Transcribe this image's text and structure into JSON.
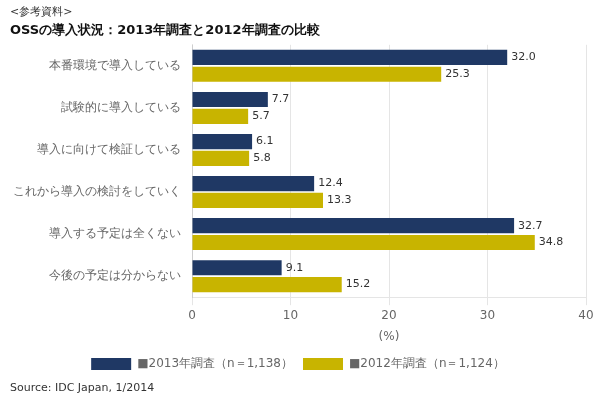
{
  "chart_data": {
    "type": "bar",
    "orientation": "horizontal",
    "subtitle": "<参考資料>",
    "title": "OSSの導入状況：2013年調査と2012年調査の比較",
    "categories": [
      "本番環境で導入している",
      "試験的に導入している",
      "導入に向けて検証している",
      "これから導入の検討をしていく",
      "導入する予定は全くない",
      "今後の予定は分からない"
    ],
    "series": [
      {
        "name": "■2013年調査（n＝1,138）",
        "color": "#1f3864",
        "values": [
          32.0,
          7.7,
          6.1,
          12.4,
          32.7,
          9.1
        ],
        "value_labels": [
          "32.0",
          "7.7",
          "6.1",
          "12.4",
          "32.7",
          "9.1"
        ]
      },
      {
        "name": "■2012年調査（n＝1,124）",
        "color": "#c8b400",
        "values": [
          25.3,
          5.7,
          5.8,
          13.3,
          34.8,
          15.2
        ],
        "value_labels": [
          "25.3",
          "5.7",
          "5.8",
          "13.3",
          "34.8",
          "15.2"
        ]
      }
    ],
    "xlabel": "(%)",
    "xlim": [
      0,
      40
    ],
    "xticks": [
      0,
      10,
      20,
      30,
      40
    ],
    "grid": true,
    "legend": "bottom",
    "data_labels": true,
    "annotations": [
      "Source: IDC Japan, 1/2014"
    ]
  }
}
